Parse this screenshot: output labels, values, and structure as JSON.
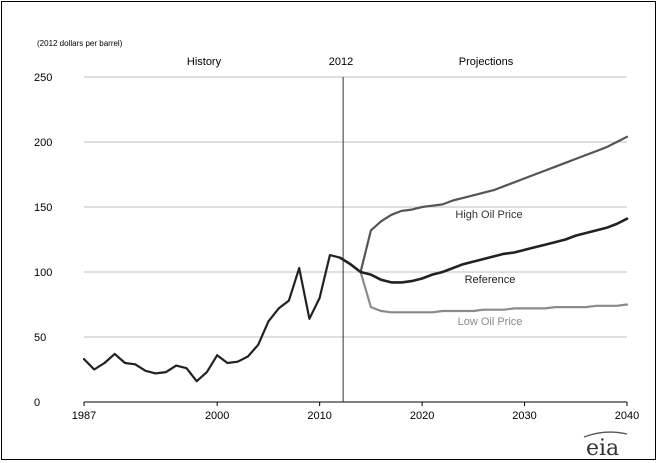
{
  "chart_data": {
    "type": "line",
    "unit_label": "(2012 dollars per barrel)",
    "ylim": [
      0,
      250
    ],
    "yticks": [
      0,
      50,
      100,
      150,
      200,
      250
    ],
    "xlim": [
      1987,
      2040
    ],
    "xticks": [
      "1987",
      "2000",
      "2010",
      "2020",
      "2030",
      "2040"
    ],
    "xtick_values": [
      1987,
      2000,
      2010,
      2020,
      2030,
      2040
    ],
    "grid": "horizontal",
    "divider_year": 2012,
    "sections": {
      "history": "History",
      "divider": "2012",
      "projections": "Projections"
    },
    "colors": {
      "history": "#222222",
      "reference": "#222222",
      "high": "#555555",
      "low": "#8a8a8a",
      "grid": "#bfbfbf"
    },
    "series": [
      {
        "key": "history",
        "x": [
          1987,
          1988,
          1989,
          1990,
          1991,
          1992,
          1993,
          1994,
          1995,
          1996,
          1997,
          1998,
          1999,
          2000,
          2001,
          2002,
          2003,
          2004,
          2005,
          2006,
          2007,
          2008,
          2009,
          2010,
          2011,
          2012
        ],
        "values": [
          33,
          25,
          30,
          37,
          30,
          29,
          24,
          22,
          23,
          28,
          26,
          16,
          23,
          36,
          30,
          31,
          35,
          44,
          62,
          72,
          78,
          103,
          64,
          80,
          113,
          111
        ]
      },
      {
        "key": "reference",
        "name": "Reference",
        "x": [
          2012,
          2013,
          2014,
          2015,
          2016,
          2017,
          2018,
          2019,
          2020,
          2021,
          2022,
          2023,
          2024,
          2025,
          2026,
          2027,
          2028,
          2029,
          2030,
          2031,
          2032,
          2033,
          2034,
          2035,
          2036,
          2037,
          2038,
          2039,
          2040
        ],
        "values": [
          111,
          106,
          100,
          98,
          94,
          92,
          92,
          93,
          95,
          98,
          100,
          103,
          106,
          108,
          110,
          112,
          114,
          115,
          117,
          119,
          121,
          123,
          125,
          128,
          130,
          132,
          134,
          137,
          141
        ]
      },
      {
        "key": "high",
        "name": "High Oil Price",
        "x": [
          2012,
          2013,
          2014,
          2015,
          2016,
          2017,
          2018,
          2019,
          2020,
          2021,
          2022,
          2023,
          2024,
          2025,
          2026,
          2027,
          2028,
          2029,
          2030,
          2031,
          2032,
          2033,
          2034,
          2035,
          2036,
          2037,
          2038,
          2039,
          2040
        ],
        "values": [
          111,
          106,
          100,
          132,
          139,
          144,
          147,
          148,
          150,
          151,
          152,
          155,
          157,
          159,
          161,
          163,
          166,
          169,
          172,
          175,
          178,
          181,
          184,
          187,
          190,
          193,
          196,
          200,
          204
        ]
      },
      {
        "key": "low",
        "name": "Low Oil Price",
        "x": [
          2012,
          2013,
          2014,
          2015,
          2016,
          2017,
          2018,
          2019,
          2020,
          2021,
          2022,
          2023,
          2024,
          2025,
          2026,
          2027,
          2028,
          2029,
          2030,
          2031,
          2032,
          2033,
          2034,
          2035,
          2036,
          2037,
          2038,
          2039,
          2040
        ],
        "values": [
          111,
          106,
          100,
          73,
          70,
          69,
          69,
          69,
          69,
          69,
          70,
          70,
          70,
          70,
          71,
          71,
          71,
          72,
          72,
          72,
          72,
          73,
          73,
          73,
          73,
          74,
          74,
          74,
          75
        ]
      }
    ]
  },
  "logo_text": "eia"
}
